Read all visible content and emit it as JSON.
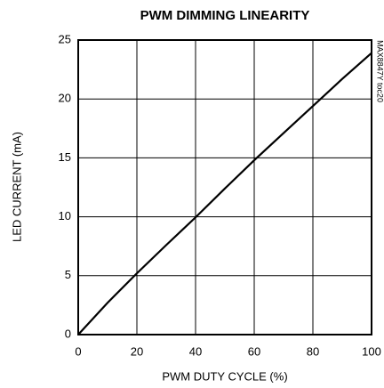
{
  "chart_data": {
    "type": "line",
    "title": "PWM DIMMING LINEARITY",
    "x_label": "PWM DUTY CYCLE (%)",
    "y_label": "LED CURRENT (mA)",
    "side_label": "MAX8847Y toc20",
    "x": [
      0,
      10,
      20,
      30,
      40,
      50,
      60,
      70,
      80,
      90,
      100
    ],
    "series": [
      {
        "name": "LED current",
        "color": "#000000",
        "values": [
          0,
          2.7,
          5.2,
          7.6,
          9.95,
          12.4,
          14.8,
          17.1,
          19.4,
          21.7,
          23.9
        ]
      }
    ],
    "xlim": [
      0,
      100
    ],
    "xticks": [
      0,
      20,
      40,
      60,
      80,
      100
    ],
    "ylim": [
      0,
      25
    ],
    "yticks": [
      0,
      5,
      10,
      15,
      20,
      25
    ],
    "grid": true
  }
}
